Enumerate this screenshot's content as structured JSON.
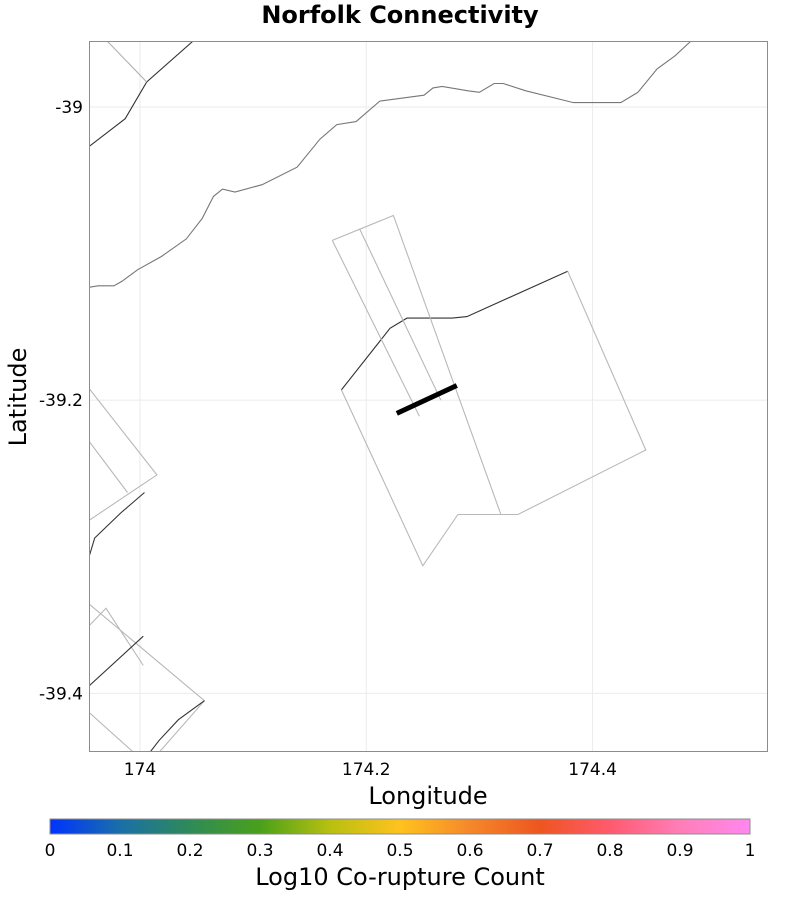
{
  "chart_data": {
    "type": "map",
    "title": "Norfolk Connectivity",
    "xlabel": "Longitude",
    "ylabel": "Latitude",
    "xlim": [
      173.955,
      174.555
    ],
    "ylim": [
      -39.44,
      -38.955
    ],
    "x_ticks": [
      174,
      174.2,
      174.4
    ],
    "x_tick_labels": [
      "174",
      "174.2",
      "174.4"
    ],
    "y_ticks": [
      -39,
      -39.2,
      -39.4
    ],
    "y_tick_labels": [
      "-39",
      "-39.2",
      "-39.4"
    ],
    "grid": true,
    "colorbar": {
      "label": "Log10 Co-rupture Count",
      "range": [
        0,
        1
      ],
      "tick_labels": [
        "0",
        "0.1",
        "0.2",
        "0.3",
        "0.4",
        "0.5",
        "0.6",
        "0.7",
        "0.8",
        "0.9",
        "1"
      ],
      "colors": [
        "#0033ff",
        "#1a6fa8",
        "#2e8b57",
        "#4aa01a",
        "#b8c010",
        "#ffc21e",
        "#f5882a",
        "#ee5520",
        "#ff5a6e",
        "#ff7eb8",
        "#ff88ee"
      ]
    },
    "coastline": [
      [
        173.955,
        -39.123
      ],
      [
        173.963,
        -39.122
      ],
      [
        173.977,
        -39.122
      ],
      [
        173.984,
        -39.119
      ],
      [
        173.998,
        -39.111
      ],
      [
        174.019,
        -39.102
      ],
      [
        174.041,
        -39.09
      ],
      [
        174.055,
        -39.076
      ],
      [
        174.065,
        -39.061
      ],
      [
        174.073,
        -39.056
      ],
      [
        174.084,
        -39.058
      ],
      [
        174.108,
        -39.053
      ],
      [
        174.139,
        -39.041
      ],
      [
        174.159,
        -39.022
      ],
      [
        174.174,
        -39.012
      ],
      [
        174.191,
        -39.01
      ],
      [
        174.212,
        -38.996
      ],
      [
        174.251,
        -38.992
      ],
      [
        174.259,
        -38.987
      ],
      [
        174.267,
        -38.986
      ],
      [
        174.29,
        -38.989
      ],
      [
        174.3,
        -38.99
      ],
      [
        174.313,
        -38.984
      ],
      [
        174.321,
        -38.984
      ],
      [
        174.341,
        -38.989
      ],
      [
        174.383,
        -38.997
      ],
      [
        174.425,
        -38.997
      ],
      [
        174.44,
        -38.99
      ],
      [
        174.457,
        -38.974
      ],
      [
        174.473,
        -38.965
      ],
      [
        174.487,
        -38.955
      ]
    ],
    "faults": [
      {
        "name": "sect-nw-top",
        "shade": "#333333",
        "points": [
          [
            173.955,
            -39.027
          ],
          [
            173.987,
            -39.008
          ],
          [
            174.006,
            -38.983
          ],
          [
            174.047,
            -38.955
          ]
        ]
      },
      {
        "name": "sect-nw-outline",
        "shade": "#b0b0b0",
        "points": [
          [
            173.971,
            -38.955
          ],
          [
            174.006,
            -38.983
          ]
        ]
      },
      {
        "name": "norfolk-trace",
        "shade": "#333333",
        "points": [
          [
            174.178,
            -39.193
          ],
          [
            174.221,
            -39.151
          ],
          [
            174.236,
            -39.144
          ],
          [
            174.276,
            -39.144
          ],
          [
            174.289,
            -39.143
          ],
          [
            174.378,
            -39.112
          ]
        ]
      },
      {
        "name": "norfolk-outline",
        "shade": "#b8b8b8",
        "points": [
          [
            174.178,
            -39.193
          ],
          [
            174.25,
            -39.313
          ],
          [
            174.281,
            -39.278
          ],
          [
            174.319,
            -39.278
          ],
          [
            174.334,
            -39.278
          ],
          [
            174.447,
            -39.234
          ],
          [
            174.378,
            -39.112
          ]
        ]
      },
      {
        "name": "plane-outer",
        "shade": "#b8b8b8",
        "points": [
          [
            174.17,
            -39.091
          ],
          [
            174.224,
            -39.074
          ],
          [
            174.319,
            -39.278
          ]
        ]
      },
      {
        "name": "plane-inner",
        "shade": "#b8b8b8",
        "points": [
          [
            174.17,
            -39.091
          ],
          [
            174.247,
            -39.211
          ]
        ]
      },
      {
        "name": "plane-mid",
        "shade": "#b8b8b8",
        "points": [
          [
            174.194,
            -39.083
          ],
          [
            174.266,
            -39.2
          ]
        ]
      },
      {
        "name": "sect-w-outline",
        "shade": "#b8b8b8",
        "points": [
          [
            173.955,
            -39.192
          ],
          [
            174.015,
            -39.251
          ],
          [
            173.955,
            -39.282
          ]
        ]
      },
      {
        "name": "sect-w-outline-2",
        "shade": "#b8b8b8",
        "points": [
          [
            173.955,
            -39.228
          ],
          [
            173.989,
            -39.263
          ]
        ]
      },
      {
        "name": "sect-w-trace",
        "shade": "#333333",
        "points": [
          [
            173.955,
            -39.307
          ],
          [
            173.96,
            -39.294
          ],
          [
            173.983,
            -39.277
          ],
          [
            174.004,
            -39.263
          ]
        ]
      },
      {
        "name": "sect-sw-outline",
        "shade": "#b8b8b8",
        "points": [
          [
            173.955,
            -39.339
          ],
          [
            174.057,
            -39.405
          ],
          [
            174.007,
            -39.449
          ],
          [
            173.955,
            -39.413
          ]
        ]
      },
      {
        "name": "sect-sw-outline-2",
        "shade": "#b8b8b8",
        "points": [
          [
            173.955,
            -39.354
          ],
          [
            173.97,
            -39.342
          ],
          [
            174.003,
            -39.381
          ]
        ]
      },
      {
        "name": "sect-sw-trace",
        "shade": "#333333",
        "points": [
          [
            173.955,
            -39.395
          ],
          [
            174.003,
            -39.361
          ]
        ]
      },
      {
        "name": "sect-sw-trace-2",
        "shade": "#333333",
        "points": [
          [
            174.057,
            -39.405
          ],
          [
            174.034,
            -39.418
          ],
          [
            174.017,
            -39.432
          ],
          [
            174.004,
            -39.445
          ],
          [
            173.997,
            -39.452
          ]
        ]
      }
    ],
    "rupture": {
      "name": "selected-section",
      "value": 1,
      "points": [
        [
          174.227,
          -39.209
        ],
        [
          174.28,
          -39.19
        ]
      ]
    }
  }
}
